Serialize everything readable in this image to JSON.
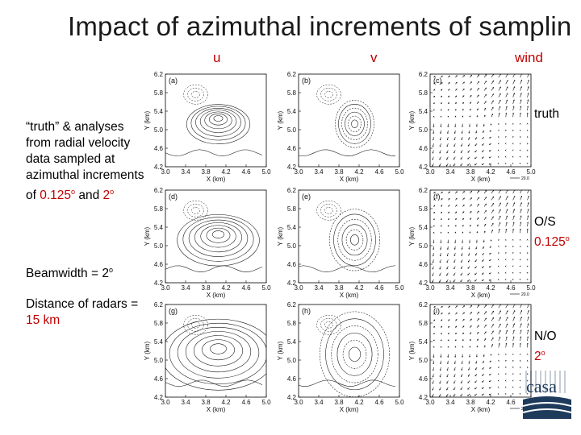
{
  "title": "Impact of azimuthal increments of samplin",
  "columns": [
    "u",
    "v",
    "wind"
  ],
  "left_text": {
    "para1_a": "“truth”  & analyses from radial velocity data sampled at azimuthal increments of ",
    "para1_val1": "0.125",
    "para1_mid": " and ",
    "para1_val2": "2",
    "deg": "o",
    "para2_a": "Beamwidth = 2",
    "para3_a": "Distance of radars = ",
    "para3_val": "15 km"
  },
  "row_labels": {
    "row1": "truth",
    "row2_a": "O/S",
    "row2_b": "0.125",
    "row3_a": "N/O",
    "row3_b": "2"
  },
  "panels": [
    {
      "letter": "(a)",
      "kind": "u"
    },
    {
      "letter": "(b)",
      "kind": "v"
    },
    {
      "letter": "(c)",
      "kind": "wind"
    },
    {
      "letter": "(d)",
      "kind": "u"
    },
    {
      "letter": "(e)",
      "kind": "v"
    },
    {
      "letter": "(f)",
      "kind": "wind"
    },
    {
      "letter": "(g)",
      "kind": "u"
    },
    {
      "letter": "(h)",
      "kind": "v"
    },
    {
      "letter": "(i)",
      "kind": "wind"
    }
  ],
  "axes": {
    "xlabel": "X (km)",
    "ylabel": "Y (km)",
    "xticks": [
      "3.0",
      "3.4",
      "3.8",
      "4.2",
      "4.6",
      "5.0"
    ],
    "yticks": [
      "6.2",
      "5.8",
      "5.4",
      "5.0",
      "4.6",
      "4.2"
    ]
  },
  "vector_ref": "20.0",
  "logo_text": "casa",
  "colors": {
    "accent": "#c00000",
    "logo": "#1f3b5c"
  }
}
